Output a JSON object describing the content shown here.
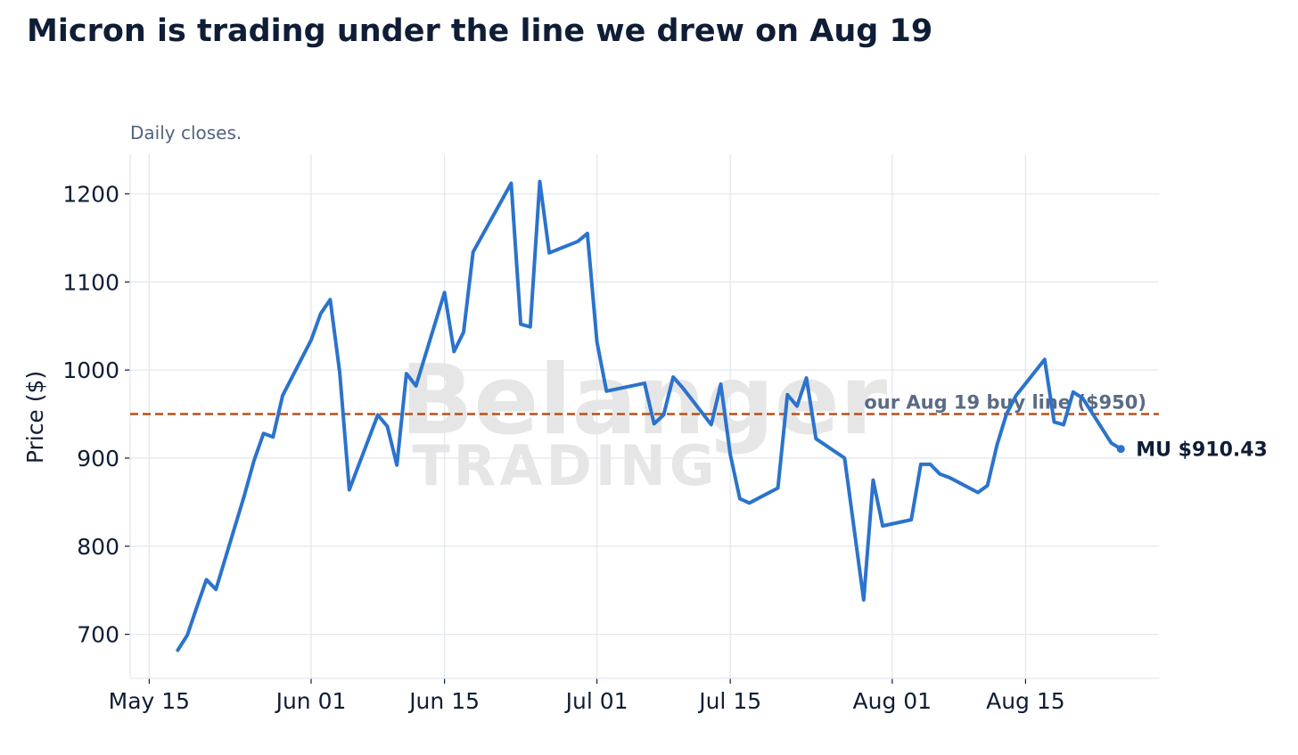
{
  "title": "Micron is trading under the line we drew on Aug 19",
  "subtitle": "Daily closes.",
  "watermark": {
    "line1": "Belanger",
    "line2": "TRADING"
  },
  "chart_data": {
    "type": "line",
    "title": "Micron is trading under the line we drew on Aug 19",
    "subtitle": "Daily closes.",
    "xlabel": "",
    "ylabel": "Price ($)",
    "ylim": [
      650,
      1245
    ],
    "xlim": [
      "2025-05-13",
      "2025-08-29"
    ],
    "yticks": [
      700,
      800,
      900,
      1000,
      1100,
      1200
    ],
    "xticks": [
      {
        "date": "2025-05-15",
        "label": "May 15"
      },
      {
        "date": "2025-06-01",
        "label": "Jun 01"
      },
      {
        "date": "2025-06-15",
        "label": "Jun 15"
      },
      {
        "date": "2025-07-01",
        "label": "Jul 01"
      },
      {
        "date": "2025-07-15",
        "label": "Jul 15"
      },
      {
        "date": "2025-08-01",
        "label": "Aug 01"
      },
      {
        "date": "2025-08-15",
        "label": "Aug 15"
      }
    ],
    "grid": true,
    "line_color": "#2b73cc",
    "reference_line": {
      "value": 950,
      "label": "our Aug 19 buy line ($950)",
      "color": "#b5501c",
      "style": "dashed"
    },
    "end_label": "MU $910.43",
    "series": [
      {
        "name": "MU",
        "points": [
          [
            "2025-05-18",
            682
          ],
          [
            "2025-05-19",
            699
          ],
          [
            "2025-05-20",
            731
          ],
          [
            "2025-05-21",
            762
          ],
          [
            "2025-05-22",
            751
          ],
          [
            "2025-05-25",
            858
          ],
          [
            "2025-05-26",
            897
          ],
          [
            "2025-05-27",
            928
          ],
          [
            "2025-05-28",
            924
          ],
          [
            "2025-05-29",
            971
          ],
          [
            "2025-06-01",
            1034
          ],
          [
            "2025-06-02",
            1064
          ],
          [
            "2025-06-03",
            1080
          ],
          [
            "2025-06-04",
            997
          ],
          [
            "2025-06-05",
            864
          ],
          [
            "2025-06-08",
            949
          ],
          [
            "2025-06-09",
            936
          ],
          [
            "2025-06-10",
            892
          ],
          [
            "2025-06-11",
            996
          ],
          [
            "2025-06-12",
            982
          ],
          [
            "2025-06-15",
            1088
          ],
          [
            "2025-06-16",
            1021
          ],
          [
            "2025-06-17",
            1043
          ],
          [
            "2025-06-18",
            1134
          ],
          [
            "2025-06-22",
            1212
          ],
          [
            "2025-06-23",
            1052
          ],
          [
            "2025-06-24",
            1049
          ],
          [
            "2025-06-25",
            1214
          ],
          [
            "2025-06-26",
            1133
          ],
          [
            "2025-06-29",
            1146
          ],
          [
            "2025-06-30",
            1155
          ],
          [
            "2025-07-01",
            1032
          ],
          [
            "2025-07-02",
            976
          ],
          [
            "2025-07-06",
            985
          ],
          [
            "2025-07-07",
            939
          ],
          [
            "2025-07-08",
            949
          ],
          [
            "2025-07-09",
            992
          ],
          [
            "2025-07-10",
            980
          ],
          [
            "2025-07-13",
            938
          ],
          [
            "2025-07-14",
            984
          ],
          [
            "2025-07-15",
            904
          ],
          [
            "2025-07-16",
            854
          ],
          [
            "2025-07-17",
            849
          ],
          [
            "2025-07-20",
            866
          ],
          [
            "2025-07-21",
            972
          ],
          [
            "2025-07-22",
            959
          ],
          [
            "2025-07-23",
            991
          ],
          [
            "2025-07-24",
            922
          ],
          [
            "2025-07-27",
            900
          ],
          [
            "2025-07-29",
            739
          ],
          [
            "2025-07-30",
            875
          ],
          [
            "2025-07-31",
            823
          ],
          [
            "2025-08-03",
            830
          ],
          [
            "2025-08-04",
            893
          ],
          [
            "2025-08-05",
            893
          ],
          [
            "2025-08-06",
            882
          ],
          [
            "2025-08-07",
            878
          ],
          [
            "2025-08-10",
            861
          ],
          [
            "2025-08-11",
            869
          ],
          [
            "2025-08-12",
            915
          ],
          [
            "2025-08-13",
            950
          ],
          [
            "2025-08-14",
            971
          ],
          [
            "2025-08-17",
            1012
          ],
          [
            "2025-08-18",
            941
          ],
          [
            "2025-08-19",
            938
          ],
          [
            "2025-08-20",
            975
          ],
          [
            "2025-08-21",
            968
          ],
          [
            "2025-08-24",
            917
          ],
          [
            "2025-08-25",
            910.43
          ]
        ]
      }
    ]
  }
}
